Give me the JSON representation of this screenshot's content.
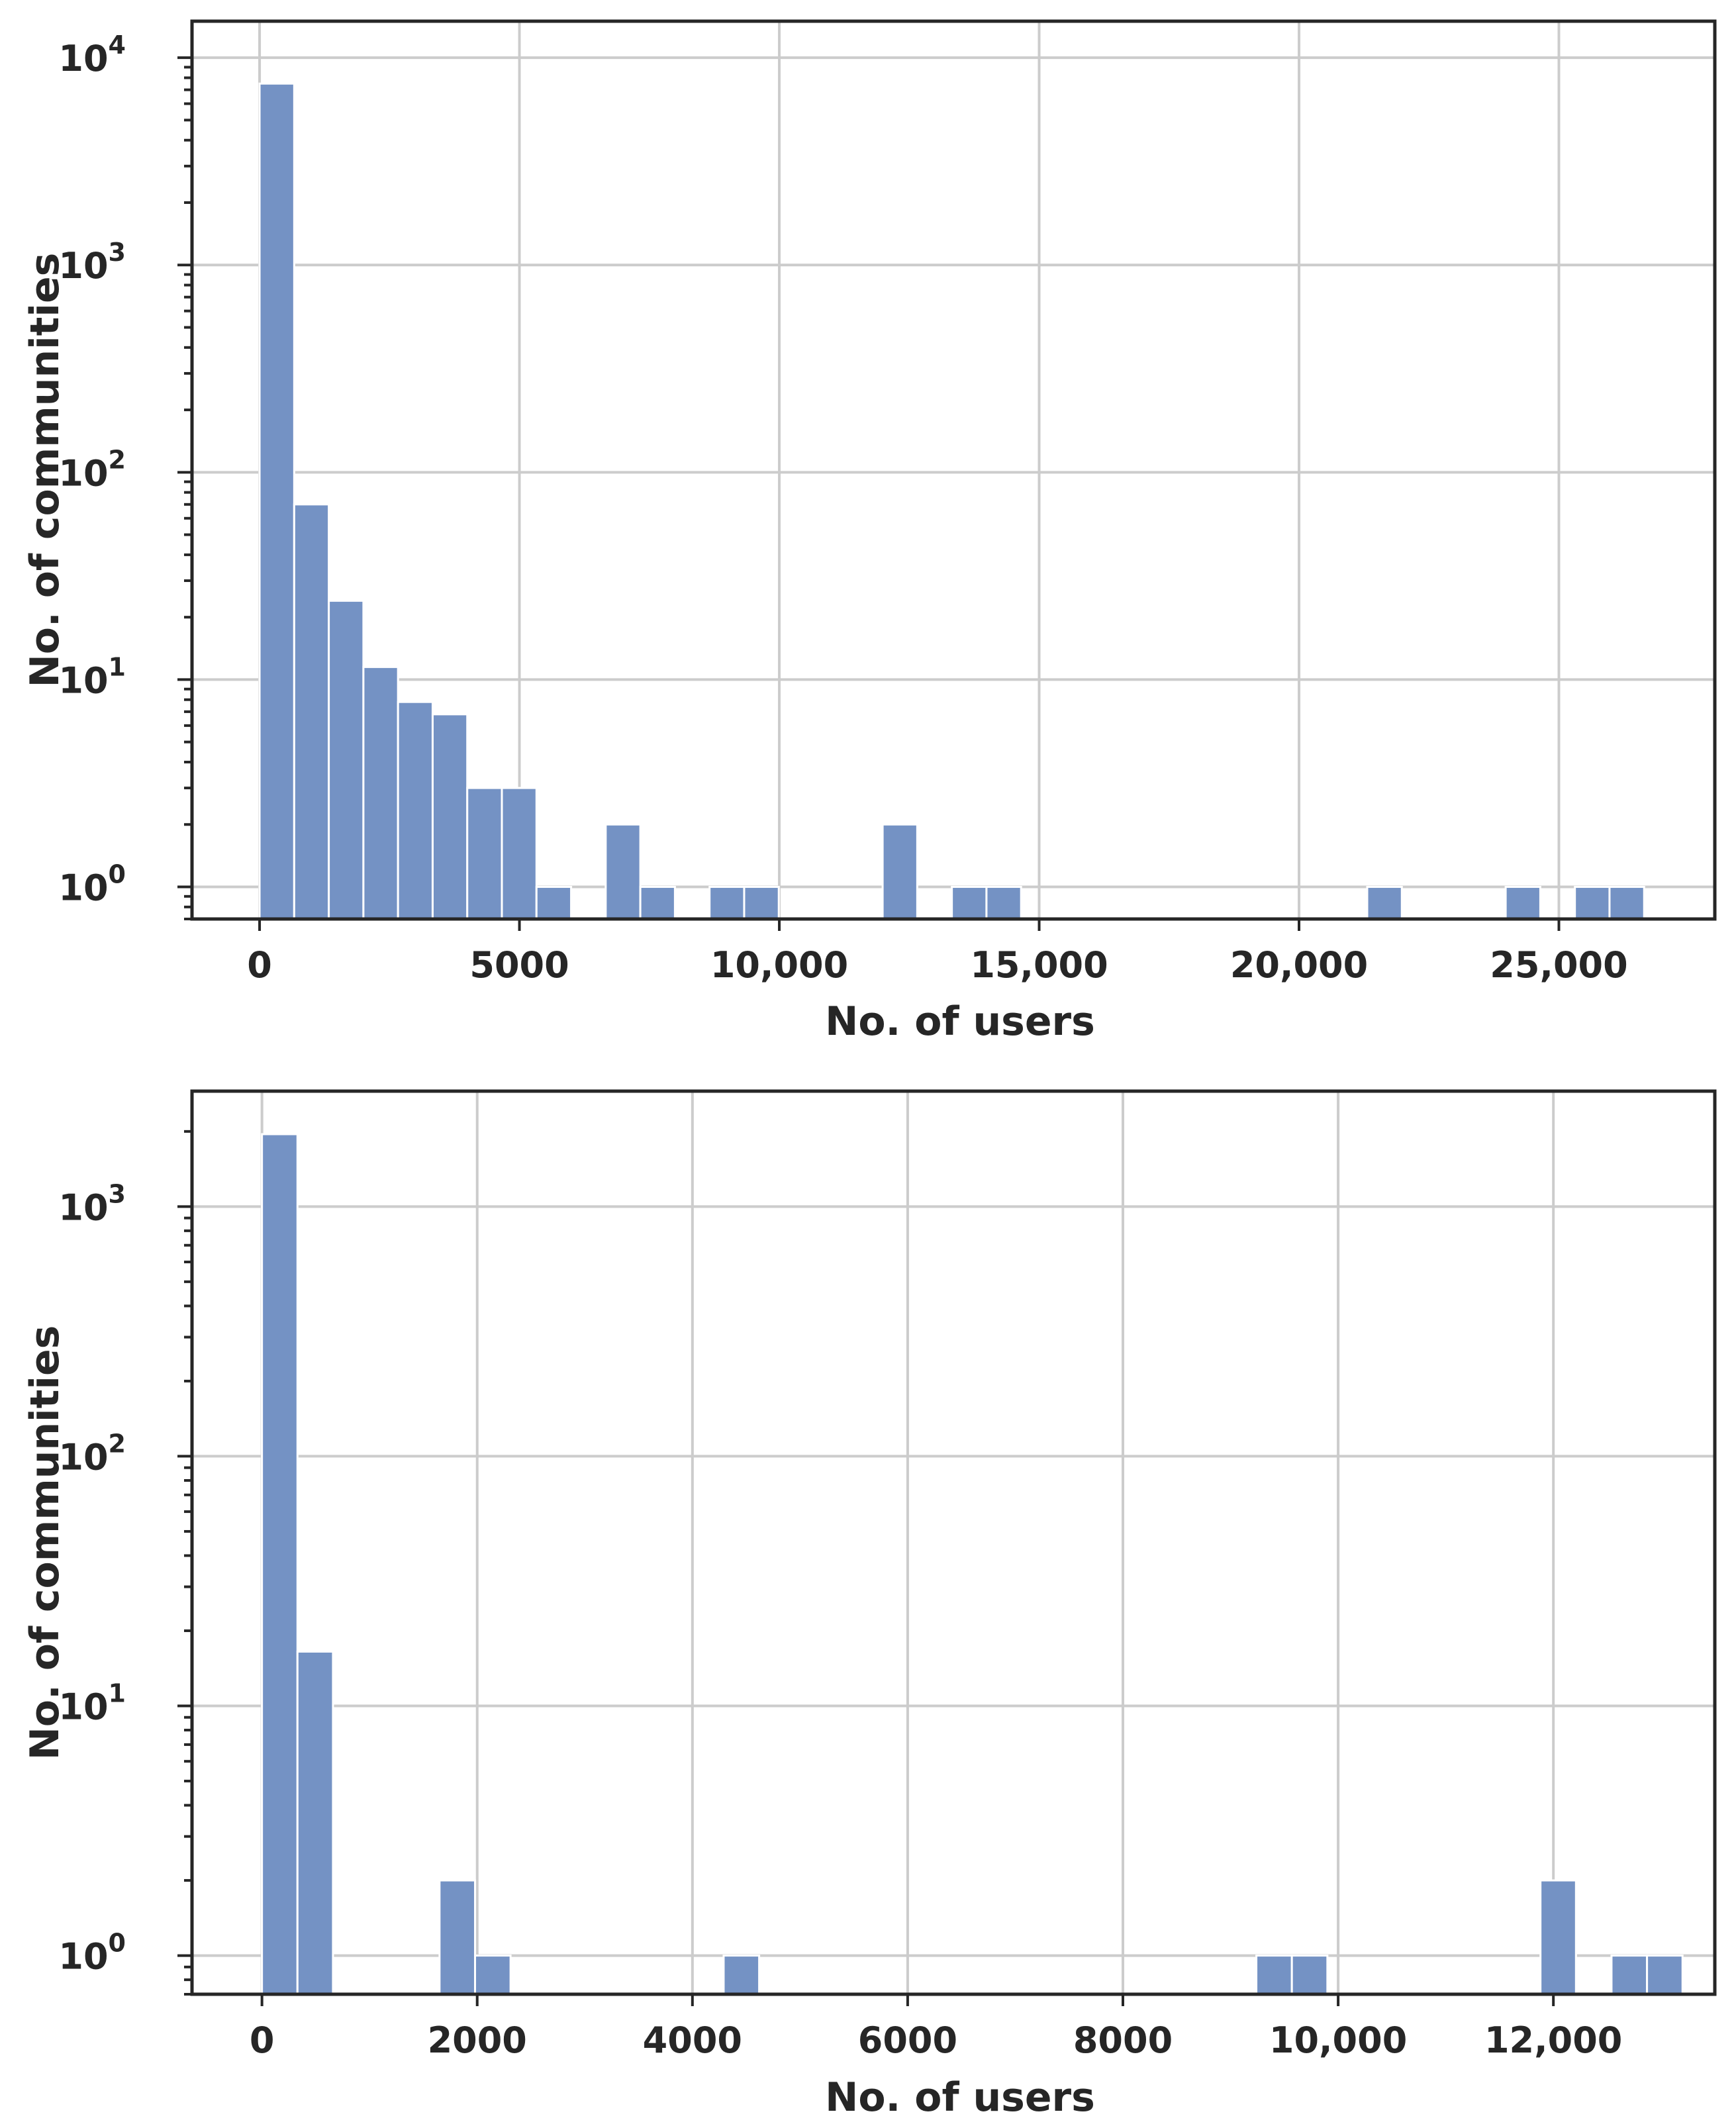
{
  "chart_data": [
    {
      "type": "bar",
      "yscale": "log",
      "xlabel": "No. of users",
      "ylabel": "No. of communities",
      "xlim": [
        -1300,
        28000
      ],
      "ylim": [
        0.7,
        15000
      ],
      "xticks": [
        0,
        5000,
        10000,
        15000,
        20000,
        25000
      ],
      "xtick_labels": [
        "0",
        "5000",
        "10,000",
        "15,000",
        "20,000",
        "25,000"
      ],
      "yticks": [
        1,
        10,
        100,
        1000,
        10000
      ],
      "ytick_bases": [
        "10",
        "10",
        "10",
        "10",
        "10"
      ],
      "ytick_exponents": [
        "0",
        "1",
        "2",
        "3",
        "4"
      ],
      "grid": true,
      "bar_color": "#7492c4",
      "bin_width": 666,
      "bins": [
        {
          "x": 0,
          "count": 7500
        },
        {
          "x": 666,
          "count": 70
        },
        {
          "x": 1332,
          "count": 24
        },
        {
          "x": 1998,
          "count": 11.5
        },
        {
          "x": 2664,
          "count": 7.8
        },
        {
          "x": 3330,
          "count": 6.8
        },
        {
          "x": 3996,
          "count": 3
        },
        {
          "x": 4662,
          "count": 3
        },
        {
          "x": 5328,
          "count": 1
        },
        {
          "x": 6660,
          "count": 2
        },
        {
          "x": 7326,
          "count": 1
        },
        {
          "x": 8658,
          "count": 1
        },
        {
          "x": 9324,
          "count": 1
        },
        {
          "x": 11988,
          "count": 2
        },
        {
          "x": 13320,
          "count": 1
        },
        {
          "x": 13986,
          "count": 1
        },
        {
          "x": 21312,
          "count": 1
        },
        {
          "x": 23976,
          "count": 1
        },
        {
          "x": 25308,
          "count": 1
        },
        {
          "x": 25974,
          "count": 1
        }
      ]
    },
    {
      "type": "bar",
      "yscale": "log",
      "xlabel": "No. of users",
      "ylabel": "No. of communities",
      "xlim": [
        -650,
        13500
      ],
      "ylim": [
        0.7,
        2900
      ],
      "xticks": [
        0,
        2000,
        4000,
        6000,
        8000,
        10000,
        12000
      ],
      "xtick_labels": [
        "0",
        "2000",
        "4000",
        "6000",
        "8000",
        "10,000",
        "12,000"
      ],
      "yticks": [
        1,
        10,
        100,
        1000
      ],
      "ytick_bases": [
        "10",
        "10",
        "10",
        "10"
      ],
      "ytick_exponents": [
        "0",
        "1",
        "2",
        "3"
      ],
      "grid": true,
      "bar_color": "#7492c4",
      "bin_width": 330,
      "bins": [
        {
          "x": 0,
          "count": 1950
        },
        {
          "x": 330,
          "count": 16.5
        },
        {
          "x": 1650,
          "count": 2
        },
        {
          "x": 1980,
          "count": 1
        },
        {
          "x": 4290,
          "count": 1
        },
        {
          "x": 9240,
          "count": 1
        },
        {
          "x": 9570,
          "count": 1
        },
        {
          "x": 11880,
          "count": 2
        },
        {
          "x": 12540,
          "count": 1
        },
        {
          "x": 12870,
          "count": 1
        }
      ]
    }
  ]
}
